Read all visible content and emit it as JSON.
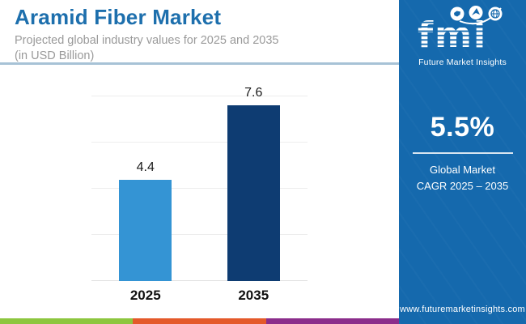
{
  "header": {
    "title": "Aramid Fiber Market",
    "subtitle_line1": "Projected global industry values for 2025 and 2035",
    "subtitle_line2": "(in USD Billion)"
  },
  "chart_data": {
    "type": "bar",
    "title": "Aramid Fiber Market",
    "subtitle": "Projected global industry values for 2025 and 2035 (in USD Billion)",
    "categories": [
      "2025",
      "2035"
    ],
    "values": [
      4.4,
      7.6
    ],
    "data_labels": [
      "4.4",
      "7.6"
    ],
    "bar_colors": [
      "#3494d4",
      "#0e3c72"
    ],
    "xlabel": "",
    "ylabel": "",
    "ylim": [
      0,
      8
    ],
    "gridline_values": [
      0,
      2,
      4,
      6,
      8
    ],
    "grid": true,
    "legend": "none"
  },
  "panel": {
    "panel_color": "#1569ad",
    "logo_text": "fmi",
    "logo_caption": "Future Market Insights",
    "logo_icons": [
      "map-icon",
      "plane-icon",
      "globe-icon"
    ],
    "cagr_value": "5.5%",
    "cagr_label_line1": "Global Market",
    "cagr_label_line2": "CAGR 2025 – 2035",
    "website": "www.futuremarketinsights.com"
  },
  "footer": {
    "strip_colors": [
      "#8dc63f",
      "#e4592a",
      "#8b2d8b"
    ]
  }
}
